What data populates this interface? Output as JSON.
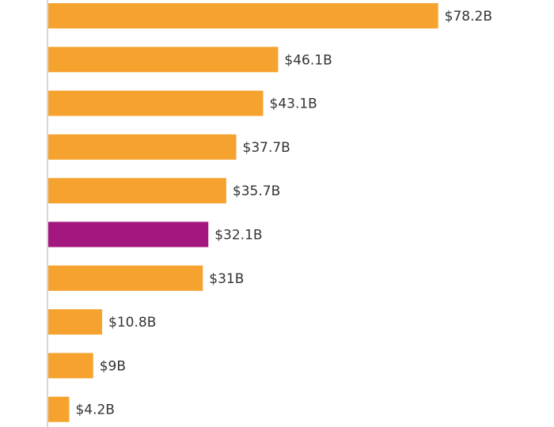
{
  "chart_data": {
    "type": "bar",
    "orientation": "horizontal",
    "categories": [
      null,
      null,
      null,
      null,
      null,
      null,
      null,
      null,
      null,
      null
    ],
    "values": [
      78.2,
      46.1,
      43.1,
      37.7,
      35.7,
      32.1,
      31,
      10.8,
      9,
      4.2
    ],
    "value_labels": [
      "$78.2B",
      "$46.1B",
      "$43.1B",
      "$37.7B",
      "$35.7B",
      "$32.1B",
      "$31B",
      "$10.8B",
      "$9B",
      "$4.2B"
    ],
    "colors": [
      "#f5a22f",
      "#f5a22f",
      "#f5a22f",
      "#f5a22f",
      "#f5a22f",
      "#a3177f",
      "#f5a22f",
      "#f5a22f",
      "#f5a22f",
      "#f5a22f"
    ]
  }
}
